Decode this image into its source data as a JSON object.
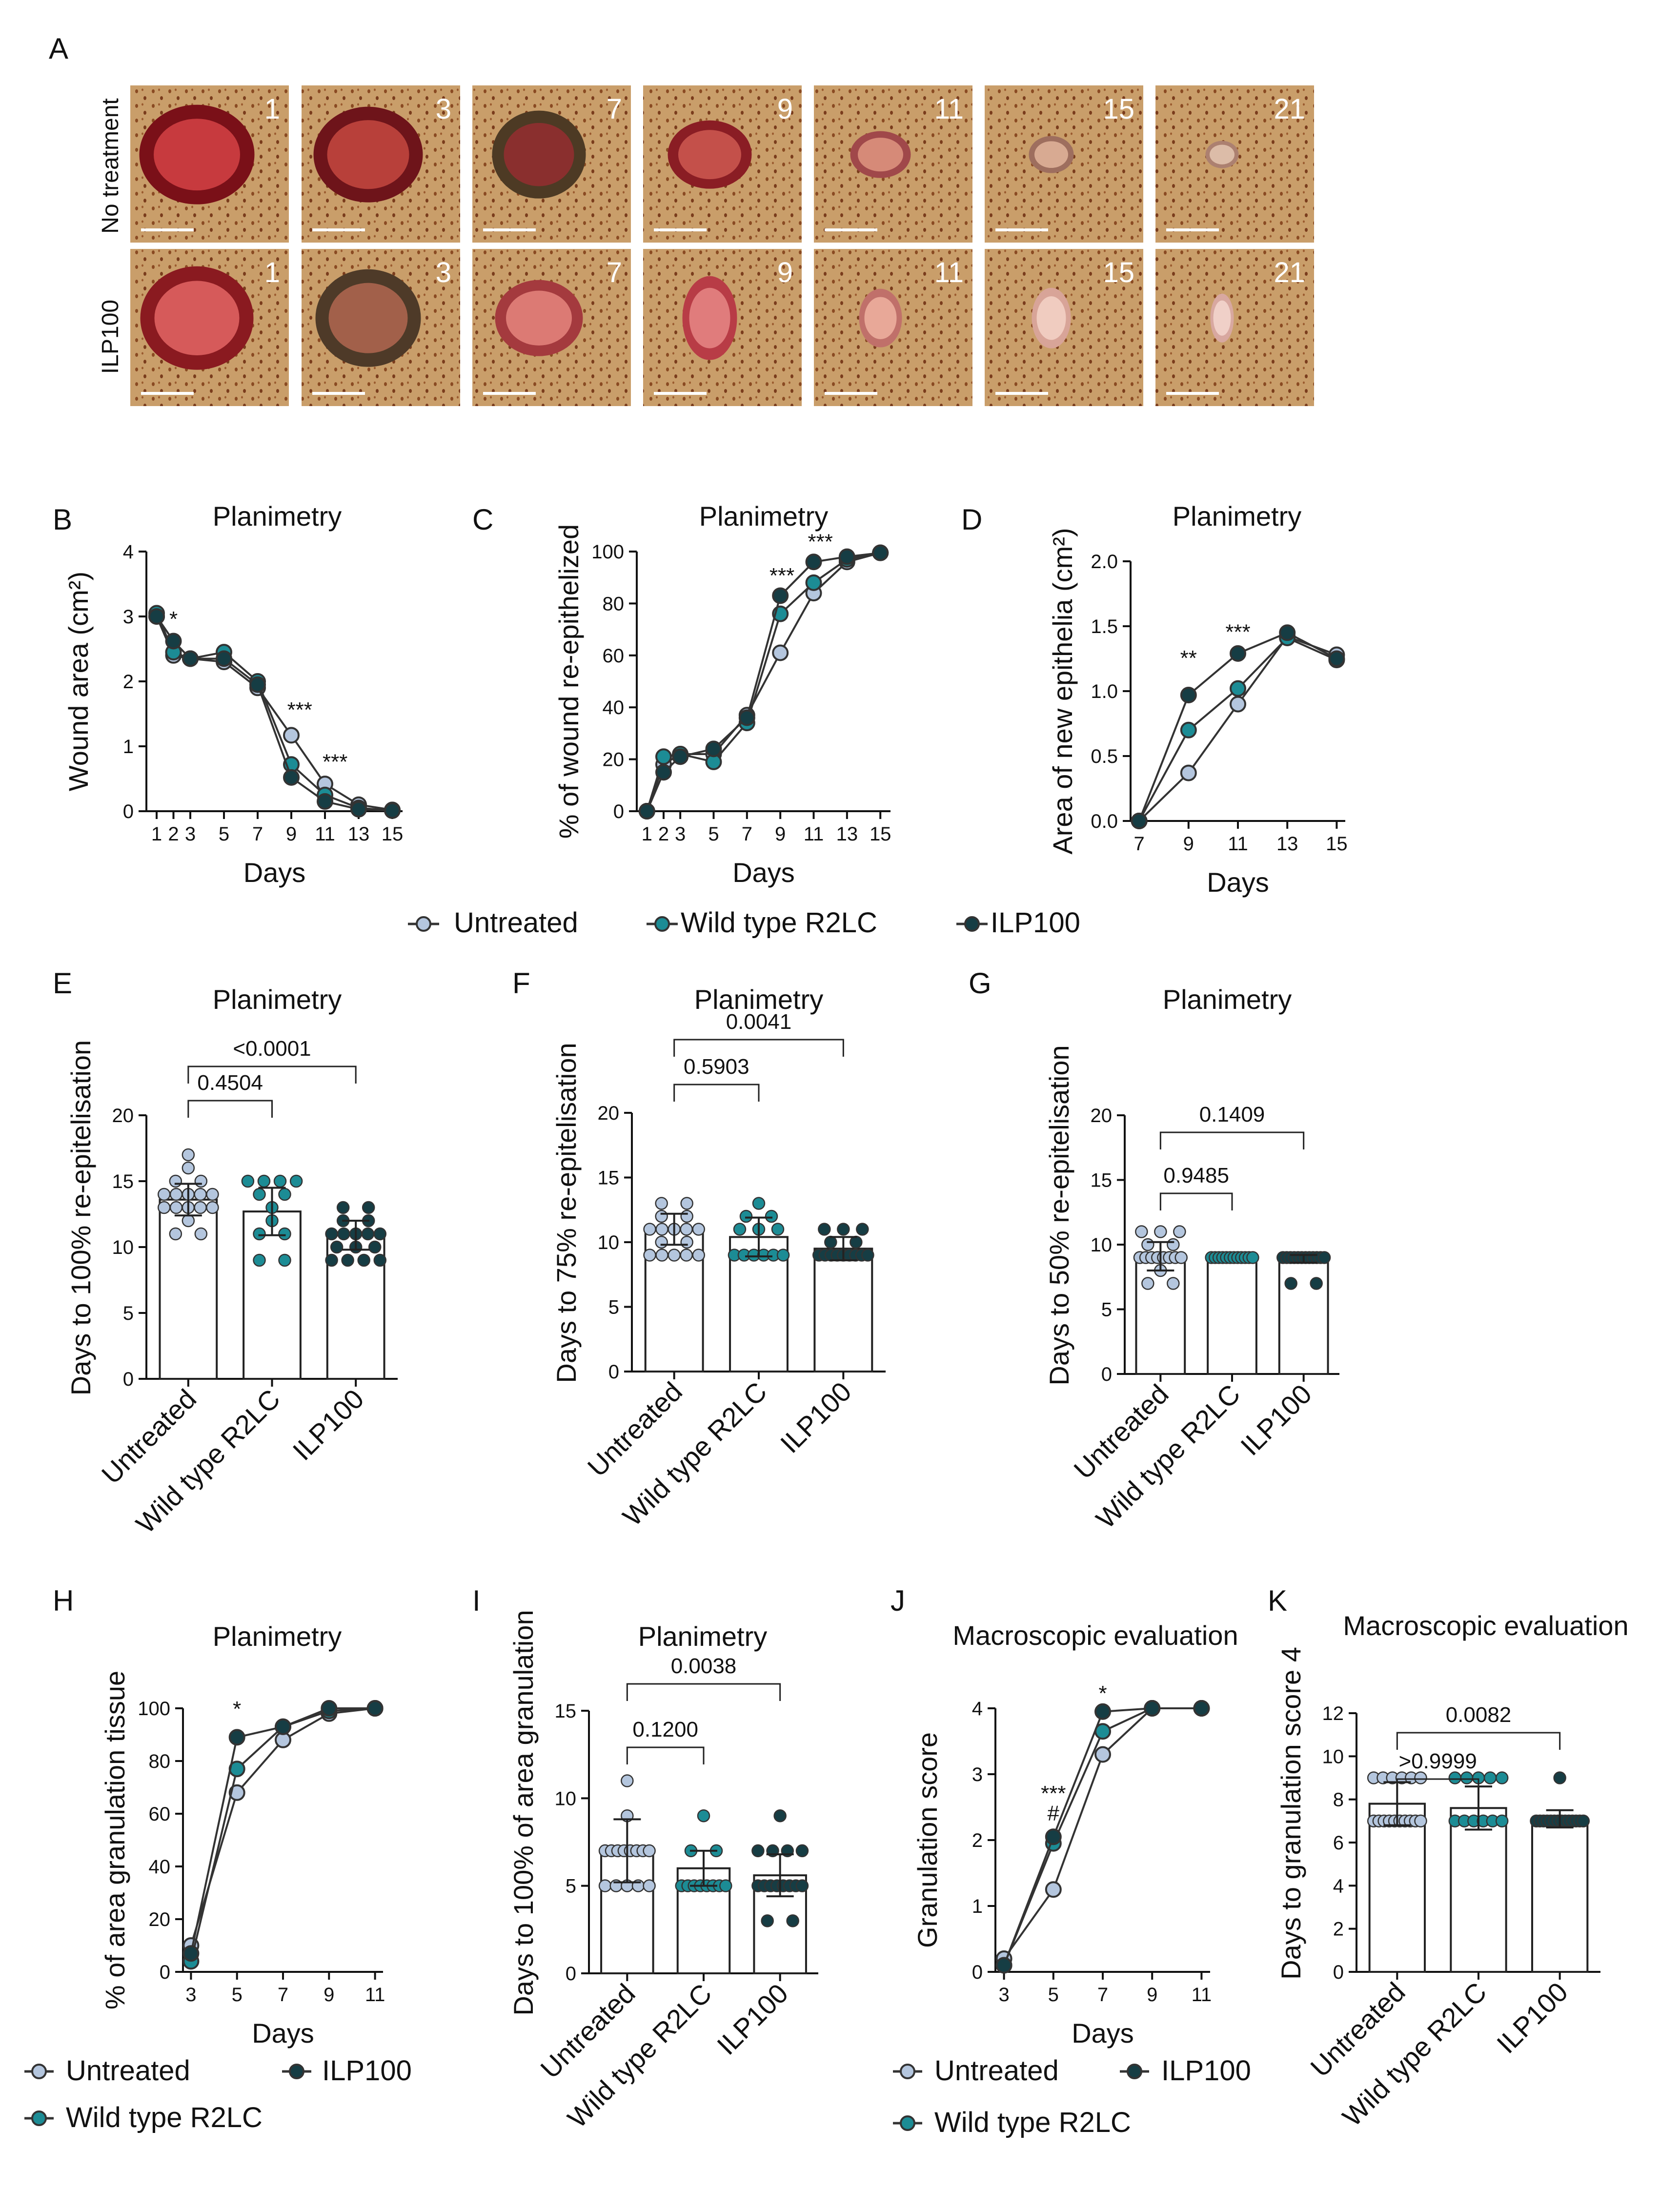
{
  "colors": {
    "untreated": "#b4c6de",
    "r2lc": "#1c8c95",
    "ilp100": "#163d44",
    "skin": "#c59a66",
    "wound": "#9c1e22",
    "scale_bar": "#ffffff"
  },
  "panel_a": {
    "label": "A",
    "rows": [
      {
        "label": "No treatment",
        "days": [
          "1",
          "3",
          "7",
          "9",
          "11",
          "15",
          "21"
        ]
      },
      {
        "label": "ILP100",
        "days": [
          "1",
          "3",
          "7",
          "9",
          "11",
          "15",
          "21"
        ]
      }
    ]
  },
  "legends": {
    "row1": [
      "Untreated",
      "Wild type R2LC",
      "ILP100"
    ],
    "row_h": [
      "Untreated",
      "ILP100",
      "Wild type R2LC"
    ],
    "row_j": [
      "Untreated",
      "ILP100",
      "Wild type R2LC"
    ]
  },
  "chart_data": [
    {
      "id": "B",
      "type": "line",
      "title": "Planimetry",
      "xlabel": "Days",
      "ylabel": "Wound area (cm²)",
      "x": [
        1,
        2,
        3,
        5,
        7,
        9,
        11,
        13,
        15
      ],
      "xticks": [
        "1",
        "2",
        "3",
        "5",
        "7",
        "9",
        "11",
        "13",
        "15"
      ],
      "ylim": [
        0,
        4
      ],
      "yticks": [
        "0",
        "1",
        "2",
        "3",
        "4"
      ],
      "series": [
        {
          "name": "Untreated",
          "values": [
            3.0,
            2.4,
            2.35,
            2.3,
            1.9,
            1.17,
            0.42,
            0.1,
            0.02
          ]
        },
        {
          "name": "Wild type R2LC",
          "values": [
            3.05,
            2.45,
            2.35,
            2.45,
            2.0,
            0.72,
            0.25,
            0.05,
            0.01
          ]
        },
        {
          "name": "ILP100",
          "values": [
            3.0,
            2.62,
            2.35,
            2.35,
            1.95,
            0.52,
            0.15,
            0.03,
            0.01
          ]
        }
      ],
      "annotations": [
        {
          "x": 2,
          "y": 2.85,
          "text": "*"
        },
        {
          "x": 9.5,
          "y": 1.45,
          "text": "***"
        },
        {
          "x": 11.6,
          "y": 0.65,
          "text": "***"
        }
      ]
    },
    {
      "id": "C",
      "type": "line",
      "title": "Planimetry",
      "xlabel": "Days",
      "ylabel": "% of wound re-epithelized",
      "x": [
        1,
        2,
        3,
        5,
        7,
        9,
        11,
        13,
        15
      ],
      "xticks": [
        "1",
        "2",
        "3",
        "5",
        "7",
        "9",
        "11",
        "13",
        "15"
      ],
      "ylim": [
        0,
        100
      ],
      "yticks": [
        "0",
        "20",
        "40",
        "60",
        "80",
        "100"
      ],
      "series": [
        {
          "name": "Untreated",
          "values": [
            0,
            18,
            22,
            22,
            37,
            61,
            84,
            96,
            99.5
          ]
        },
        {
          "name": "Wild type R2LC",
          "values": [
            0,
            21,
            22,
            19,
            34,
            76,
            88,
            97,
            99.5
          ]
        },
        {
          "name": "ILP100",
          "values": [
            0,
            15,
            21,
            24,
            36,
            83,
            96,
            98,
            99.5
          ]
        }
      ],
      "annotations": [
        {
          "x": 9.1,
          "y": 88,
          "text": "***"
        },
        {
          "x": 11.4,
          "y": 101,
          "text": "***"
        }
      ]
    },
    {
      "id": "D",
      "type": "line",
      "title": "Planimetry",
      "xlabel": "Days",
      "ylabel": "Area of new epithelia (cm²)",
      "x": [
        7,
        9,
        11,
        13,
        15
      ],
      "xticks": [
        "7",
        "9",
        "11",
        "13",
        "15"
      ],
      "ylim": [
        0,
        2.0
      ],
      "yticks": [
        "0.0",
        "0.5",
        "1.0",
        "1.5",
        "2.0"
      ],
      "series": [
        {
          "name": "Untreated",
          "values": [
            0.0,
            0.37,
            0.9,
            1.42,
            1.28
          ]
        },
        {
          "name": "Wild type R2LC",
          "values": [
            0.0,
            0.7,
            1.02,
            1.41,
            1.24
          ]
        },
        {
          "name": "ILP100",
          "values": [
            0.0,
            0.97,
            1.29,
            1.45,
            1.25
          ]
        }
      ],
      "annotations": [
        {
          "x": 9,
          "y": 1.2,
          "text": "**"
        },
        {
          "x": 11,
          "y": 1.4,
          "text": "***"
        }
      ]
    },
    {
      "id": "E",
      "type": "bar",
      "title": "Planimetry",
      "ylabel": "Days to 100% re-epitelisation",
      "categories": [
        "Untreated",
        "Wild type R2LC",
        "ILP100"
      ],
      "values": [
        13.6,
        12.7,
        10.9
      ],
      "errors": [
        1.2,
        1.8,
        1.1
      ],
      "ylim": [
        0,
        20
      ],
      "yticks": [
        "0",
        "5",
        "10",
        "15",
        "20"
      ],
      "points": [
        [
          13,
          13,
          13,
          13,
          13,
          14,
          14,
          14,
          14,
          14,
          15,
          15,
          16,
          17,
          12,
          11,
          11
        ],
        [
          15,
          15,
          15,
          15,
          14,
          14,
          13,
          12,
          11,
          11,
          9,
          9
        ],
        [
          13,
          13,
          12,
          12,
          11,
          11,
          11,
          11,
          10,
          10,
          9,
          9,
          9,
          9,
          11,
          10
        ]
      ],
      "brackets": [
        {
          "from": 0,
          "to": 1,
          "text": "0.4504"
        },
        {
          "from": 0,
          "to": 2,
          "text": "<0.0001"
        }
      ]
    },
    {
      "id": "F",
      "type": "bar",
      "title": "Planimetry",
      "ylabel": "Days to 75% re-epitelisation",
      "categories": [
        "Untreated",
        "Wild type R2LC",
        "ILP100"
      ],
      "values": [
        11.0,
        10.4,
        9.5
      ],
      "errors": [
        1.2,
        1.5,
        0.9
      ],
      "ylim": [
        0,
        20
      ],
      "yticks": [
        "0",
        "5",
        "10",
        "15",
        "20"
      ],
      "points": [
        [
          13,
          13,
          12,
          12,
          11,
          11,
          11,
          11,
          11,
          10,
          10,
          9,
          9,
          9,
          9,
          9
        ],
        [
          13,
          12,
          12,
          11,
          11,
          11,
          9,
          9,
          9,
          9,
          9,
          9
        ],
        [
          11,
          11,
          11,
          10,
          10,
          9,
          9,
          9,
          9,
          9,
          9,
          9,
          9,
          9
        ]
      ],
      "brackets": [
        {
          "from": 0,
          "to": 1,
          "text": "0.5903"
        },
        {
          "from": 0,
          "to": 2,
          "text": "0.0041"
        }
      ]
    },
    {
      "id": "G",
      "type": "bar",
      "title": "Planimetry",
      "ylabel": "Days to 50% re-epitelisation",
      "categories": [
        "Untreated",
        "Wild type R2LC",
        "ILP100"
      ],
      "values": [
        9.1,
        9.0,
        8.9
      ],
      "errors": [
        1.1,
        0,
        0.3
      ],
      "ylim": [
        0,
        20
      ],
      "yticks": [
        "0",
        "5",
        "10",
        "15",
        "20"
      ],
      "points": [
        [
          11,
          11,
          11,
          10,
          10,
          9,
          9,
          9,
          9,
          9,
          9,
          9,
          9,
          8,
          7,
          7
        ],
        [
          9,
          9,
          9,
          9,
          9,
          9,
          9,
          9,
          9,
          9,
          9,
          9
        ],
        [
          9,
          9,
          9,
          9,
          9,
          9,
          9,
          9,
          9,
          9,
          9,
          9,
          7,
          7
        ]
      ],
      "brackets": [
        {
          "from": 0,
          "to": 1,
          "text": "0.9485"
        },
        {
          "from": 0,
          "to": 2,
          "text": "0.1409"
        }
      ]
    },
    {
      "id": "H",
      "type": "line",
      "title": "Planimetry",
      "xlabel": "Days",
      "ylabel": "% of area granulation tissue",
      "x": [
        3,
        5,
        7,
        9,
        11
      ],
      "xticks": [
        "3",
        "5",
        "7",
        "9",
        "11"
      ],
      "ylim": [
        0,
        100
      ],
      "yticks": [
        "0",
        "20",
        "40",
        "60",
        "80",
        "100"
      ],
      "series": [
        {
          "name": "Untreated",
          "values": [
            10,
            68,
            88,
            98,
            100
          ]
        },
        {
          "name": "Wild type R2LC",
          "values": [
            4,
            77,
            93,
            99,
            100
          ]
        },
        {
          "name": "ILP100",
          "values": [
            7,
            89,
            93,
            100,
            100
          ]
        }
      ],
      "annotations": [
        {
          "x": 5,
          "y": 97,
          "text": "*"
        }
      ]
    },
    {
      "id": "I",
      "type": "bar",
      "title": "Planimetry",
      "ylabel": "Days to 100% of area granulation",
      "categories": [
        "Untreated",
        "Wild type R2LC",
        "ILP100"
      ],
      "values": [
        7.0,
        6.0,
        5.6
      ],
      "errors": [
        1.8,
        1.0,
        1.2
      ],
      "ylim": [
        0,
        15
      ],
      "yticks": [
        "0",
        "5",
        "10",
        "15"
      ],
      "points": [
        [
          11,
          9,
          7,
          7,
          7,
          7,
          7,
          7,
          7,
          7,
          5,
          5,
          5,
          5,
          5
        ],
        [
          9,
          7,
          7,
          5,
          5,
          5,
          5,
          5,
          5,
          5,
          5
        ],
        [
          9,
          7,
          7,
          7,
          7,
          5,
          5,
          5,
          5,
          5,
          5,
          5,
          5,
          3,
          3
        ]
      ],
      "brackets": [
        {
          "from": 0,
          "to": 1,
          "text": "0.1200"
        },
        {
          "from": 0,
          "to": 2,
          "text": "0.0038"
        }
      ]
    },
    {
      "id": "J",
      "type": "line",
      "title": "Macroscopic evaluation",
      "xlabel": "Days",
      "ylabel": "Granulation score",
      "x": [
        3,
        5,
        7,
        9,
        11
      ],
      "xticks": [
        "3",
        "5",
        "7",
        "9",
        "11"
      ],
      "ylim": [
        0,
        4
      ],
      "yticks": [
        "0",
        "1",
        "2",
        "3",
        "4"
      ],
      "series": [
        {
          "name": "Untreated",
          "values": [
            0.2,
            1.25,
            3.3,
            4.0,
            4.0
          ]
        },
        {
          "name": "Wild type R2LC",
          "values": [
            0.1,
            1.95,
            3.65,
            4.0,
            4.0
          ]
        },
        {
          "name": "ILP100",
          "values": [
            0.1,
            2.05,
            3.95,
            4.0,
            4.0
          ]
        }
      ],
      "annotations": [
        {
          "x": 5,
          "y": 2.6,
          "text": "***"
        },
        {
          "x": 5,
          "y": 2.3,
          "text": "#"
        },
        {
          "x": 7,
          "y": 4.12,
          "text": "*"
        }
      ]
    },
    {
      "id": "K",
      "type": "bar",
      "title": "Macroscopic evaluation",
      "ylabel": "Days to granulation score 4",
      "categories": [
        "Untreated",
        "Wild type R2LC",
        "ILP100"
      ],
      "values": [
        7.8,
        7.6,
        7.1
      ],
      "errors": [
        1.0,
        1.0,
        0.4
      ],
      "ylim": [
        0,
        12
      ],
      "yticks": [
        "0",
        "2",
        "4",
        "6",
        "8",
        "10",
        "12"
      ],
      "points": [
        [
          9,
          9,
          9,
          9,
          9,
          9,
          7,
          7,
          7,
          7,
          7,
          7,
          7,
          7,
          7,
          7
        ],
        [
          9,
          9,
          9,
          9,
          9,
          7,
          7,
          7,
          7,
          7,
          7
        ],
        [
          9,
          7,
          7,
          7,
          7,
          7,
          7,
          7,
          7,
          7,
          7,
          7,
          7,
          7,
          7
        ]
      ],
      "brackets": [
        {
          "from": 0,
          "to": 1,
          "text": ">0.9999"
        },
        {
          "from": 0,
          "to": 2,
          "text": "0.0082"
        }
      ]
    }
  ]
}
